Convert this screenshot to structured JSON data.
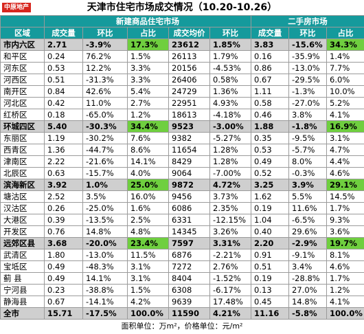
{
  "logo": "中原地产",
  "title": "天津市住宅市场成交情况（10.20-10.26）",
  "groups": [
    "新建商品住宅市场",
    "二手房市场"
  ],
  "columns": [
    "区域",
    "成交量",
    "环比",
    "占比",
    "成交均价",
    "环比",
    "成交量",
    "环比",
    "占比"
  ],
  "rows": [
    [
      "市内六区",
      "2.71",
      "-3.9%",
      "17.3%",
      "23612",
      "1.85%",
      "3.83",
      "-15.6%",
      "34.3%"
    ],
    [
      "和平区",
      "0.24",
      "76.2%",
      "1.5%",
      "26113",
      "1.79%",
      "0.16",
      "-35.9%",
      "1.4%"
    ],
    [
      "河东区",
      "0.53",
      "12.2%",
      "3.3%",
      "20156",
      "-4.53%",
      "0.86",
      "-13.0%",
      "7.7%"
    ],
    [
      "河西区",
      "0.51",
      "-31.3%",
      "3.3%",
      "26406",
      "0.58%",
      "0.67",
      "-29.5%",
      "6.0%"
    ],
    [
      "南开区",
      "0.84",
      "42.6%",
      "5.4%",
      "24729",
      "1.36%",
      "1.11",
      "-1.3%",
      "10.0%"
    ],
    [
      "河北区",
      "0.42",
      "11.0%",
      "2.7%",
      "22951",
      "4.93%",
      "0.58",
      "-27.0%",
      "5.2%"
    ],
    [
      "红桥区",
      "0.18",
      "-65.0%",
      "1.2%",
      "18613",
      "-4.18%",
      "0.46",
      "3.8%",
      "4.1%"
    ],
    [
      "环城四区",
      "5.40",
      "-30.3%",
      "34.4%",
      "9523",
      "-3.00%",
      "1.88",
      "-1.8%",
      "16.9%"
    ],
    [
      "东丽区",
      "1.19",
      "-30.2%",
      "7.6%",
      "9382",
      "-5.27%",
      "0.35",
      "-9.5%",
      "3.1%"
    ],
    [
      "西青区",
      "1.36",
      "-44.7%",
      "8.6%",
      "11654",
      "1.28%",
      "0.53",
      "-5.7%",
      "4.7%"
    ],
    [
      "津南区",
      "2.22",
      "-21.6%",
      "14.1%",
      "8429",
      "1.28%",
      "0.49",
      "8.0%",
      "4.4%"
    ],
    [
      "北辰区",
      "0.63",
      "-15.7%",
      "4.0%",
      "9064",
      "-7.00%",
      "0.52",
      "-0.3%",
      "4.6%"
    ],
    [
      "滨海新区",
      "3.92",
      "1.0%",
      "25.0%",
      "9872",
      "4.72%",
      "3.25",
      "3.9%",
      "29.1%"
    ],
    [
      "塘沽区",
      "2.52",
      "3.5%",
      "16.0%",
      "9456",
      "3.73%",
      "1.62",
      "5.5%",
      "14.5%"
    ],
    [
      "汉沽区",
      "0.26",
      "-25.0%",
      "1.6%",
      "6086",
      "2.35%",
      "0.19",
      "11.6%",
      "1.7%"
    ],
    [
      "大港区",
      "0.39",
      "-13.5%",
      "2.5%",
      "6331",
      "-12.15%",
      "1.04",
      "-6.5%",
      "9.3%"
    ],
    [
      "开发区",
      "0.76",
      "14.8%",
      "4.8%",
      "14345",
      "3.26%",
      "0.40",
      "29.6%",
      "3.6%"
    ],
    [
      "远郊区县",
      "3.68",
      "-20.0%",
      "23.4%",
      "7597",
      "3.31%",
      "2.20",
      "-2.9%",
      "19.7%"
    ],
    [
      "武清区",
      "1.80",
      "-13.0%",
      "11.5%",
      "6876",
      "-2.21%",
      "0.91",
      "-9.1%",
      "8.1%"
    ],
    [
      "宝坻区",
      "0.49",
      "-48.3%",
      "3.1%",
      "7272",
      "2.76%",
      "0.51",
      "3.4%",
      "4.6%"
    ],
    [
      "蓟 县",
      "0.49",
      "14.1%",
      "3.1%",
      "8404",
      "-1.52%",
      "0.19",
      "-28.8%",
      "1.7%"
    ],
    [
      "宁河县",
      "0.23",
      "-38.8%",
      "1.5%",
      "6308",
      "-6.17%",
      "0.13",
      "27.0%",
      "1.2%"
    ],
    [
      "静海县",
      "0.67",
      "-14.1%",
      "4.2%",
      "9639",
      "17.48%",
      "0.45",
      "14.8%",
      "4.1%"
    ],
    [
      "全市",
      "15.71",
      "-17.5%",
      "100.0%",
      "11590",
      "4.21%",
      "11.16",
      "-5.8%",
      "100.0%"
    ]
  ],
  "footer": "面积单位：万m²，价格单位：元/m²"
}
